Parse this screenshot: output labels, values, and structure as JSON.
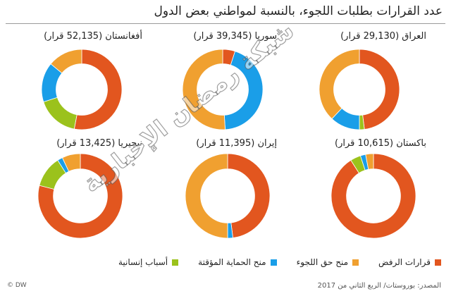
{
  "title": "عدد القرارات بطلبات اللجوء، بالنسبة لمواطني بعض الدول",
  "colors": {
    "refusal": "#e2561f",
    "refugee_status": "#f0a030",
    "temporary_protection": "#1a9ee8",
    "humanitarian": "#9bc21c"
  },
  "legend": [
    {
      "label": "قرارات الرفض",
      "key": "refusal"
    },
    {
      "label": "منح حق اللجوء",
      "key": "refugee_status"
    },
    {
      "label": "منح الحماية المؤقتة",
      "key": "temporary_protection"
    },
    {
      "label": "أسباب إنسانية",
      "key": "humanitarian"
    }
  ],
  "source": "المصدر: بوروستات/ الربع الثاني من 2017",
  "logo": "© DW",
  "watermark": "شبكة رمضان الإخبارية",
  "chart_data": [
    {
      "type": "pie",
      "label": "العراق (29,130  قرار)",
      "slices": {
        "refusal": 48,
        "humanitarian": 2,
        "temporary_protection": 12,
        "refugee_status": 38
      }
    },
    {
      "type": "pie",
      "label": "سوريا (39,345  قرار)",
      "slices": {
        "refusal": 5,
        "humanitarian": 0,
        "temporary_protection": 44,
        "refugee_status": 51
      }
    },
    {
      "type": "pie",
      "label": "أفغانستان (52,135  قرار)",
      "slices": {
        "refusal": 53,
        "humanitarian": 17,
        "temporary_protection": 16,
        "refugee_status": 14
      }
    },
    {
      "type": "pie",
      "label": "باكستان (10,615  قرار)",
      "slices": {
        "refusal": 91,
        "humanitarian": 4,
        "temporary_protection": 2,
        "refugee_status": 3
      }
    },
    {
      "type": "pie",
      "label": "إيران (11,395  قرار)",
      "slices": {
        "refusal": 48,
        "humanitarian": 0,
        "temporary_protection": 2,
        "refugee_status": 50
      }
    },
    {
      "type": "pie",
      "label": "نيجيريا (13,425  قرار)",
      "slices": {
        "refusal": 79,
        "humanitarian": 12,
        "temporary_protection": 2,
        "refugee_status": 7
      }
    }
  ]
}
